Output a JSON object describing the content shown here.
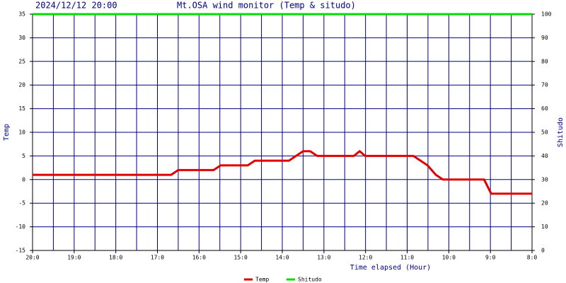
{
  "chart_data": {
    "type": "line",
    "timestamp": "2024/12/12 20:00",
    "title": "Mt.OSA wind monitor (Temp & situdo)",
    "xlabel": "Time elapsed (Hour)",
    "ylabel": "Temp",
    "y2label": "Shitudo",
    "xlim": [
      0,
      12
    ],
    "xticks": [
      {
        "value": 0,
        "label": "20:0"
      },
      {
        "value": 1,
        "label": "19:0"
      },
      {
        "value": 2,
        "label": "18:0"
      },
      {
        "value": 3,
        "label": "17:0"
      },
      {
        "value": 4,
        "label": "16:0"
      },
      {
        "value": 5,
        "label": "15:0"
      },
      {
        "value": 6,
        "label": "14:0"
      },
      {
        "value": 7,
        "label": "13:0"
      },
      {
        "value": 8,
        "label": "12:0"
      },
      {
        "value": 9,
        "label": "11:0"
      },
      {
        "value": 10,
        "label": "10:0"
      },
      {
        "value": 11,
        "label": "9:0"
      },
      {
        "value": 12,
        "label": "8:0"
      }
    ],
    "minor_xticks": [
      0.5,
      1.5,
      2.5,
      3.5,
      4.5,
      5.5,
      6.5,
      7.5,
      8.5,
      9.5,
      10.5,
      11.5
    ],
    "ylim": [
      -15,
      35
    ],
    "yticks": [
      -15,
      -10,
      -5,
      0,
      5,
      10,
      15,
      20,
      25,
      30,
      35
    ],
    "y2lim": [
      0,
      100
    ],
    "y2ticks": [
      0,
      10,
      20,
      30,
      40,
      50,
      60,
      70,
      80,
      90,
      100
    ],
    "grid": true,
    "grid_color": "#000080",
    "legend": "bottom",
    "series": [
      {
        "name": "Temp",
        "color": "#e00000",
        "x": [
          0,
          3.33,
          3.5,
          4.35,
          4.52,
          5.17,
          5.34,
          6.16,
          6.33,
          6.5,
          6.67,
          6.84,
          7.72,
          7.86,
          7.99,
          9.15,
          9.49,
          9.69,
          9.86,
          10.85,
          11.02,
          12
        ],
        "values": [
          1,
          1,
          2,
          2,
          3,
          3,
          4,
          4,
          5,
          6,
          6,
          5,
          5,
          6,
          5,
          5,
          3,
          1,
          0,
          0,
          -3,
          -3
        ]
      },
      {
        "name": "Shitudo",
        "color": "#00e000",
        "axis": "y2",
        "x": [
          0,
          12
        ],
        "values": [
          100,
          100
        ]
      }
    ]
  }
}
